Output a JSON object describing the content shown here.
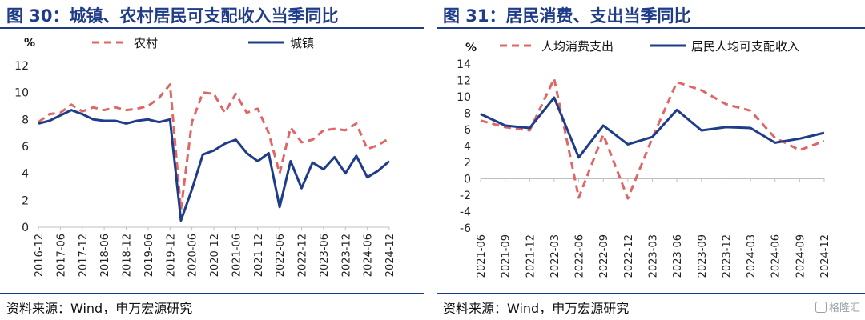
{
  "figures": [
    {
      "title": "图 30：城镇、农村居民可支配收入当季同比",
      "source": "资料来源：Wind，申万宏源研究"
    },
    {
      "title": "图 31：居民消费、支出当季同比",
      "source": "资料来源：Wind，申万宏源研究"
    }
  ],
  "watermark": "格隆汇",
  "chart_data": [
    {
      "type": "line",
      "ylabel": "%",
      "ylim": [
        0,
        12
      ],
      "yticks": [
        0,
        2,
        4,
        6,
        8,
        10,
        12
      ],
      "x": [
        "2016-12",
        "2017-03",
        "2017-06",
        "2017-09",
        "2017-12",
        "2018-03",
        "2018-06",
        "2018-09",
        "2018-12",
        "2019-03",
        "2019-06",
        "2019-09",
        "2019-12",
        "2020-03",
        "2020-06",
        "2020-09",
        "2020-12",
        "2021-03",
        "2021-06",
        "2021-09",
        "2021-12",
        "2022-03",
        "2022-06",
        "2022-09",
        "2022-12",
        "2023-03",
        "2023-06",
        "2023-09",
        "2023-12",
        "2024-03",
        "2024-06",
        "2024-09",
        "2024-12"
      ],
      "xtick_labels": [
        "2016-12",
        "2017-06",
        "2017-12",
        "2018-06",
        "2018-12",
        "2019-06",
        "2019-12",
        "2020-06",
        "2020-12",
        "2021-06",
        "2021-12",
        "2022-06",
        "2022-12",
        "2023-06",
        "2023-12",
        "2024-06",
        "2024-12"
      ],
      "legend_position": "top",
      "series": [
        {
          "name": "农村",
          "style": "dashed",
          "color": "#e06666",
          "values": [
            7.8,
            8.4,
            8.5,
            9.1,
            8.6,
            8.9,
            8.7,
            8.9,
            8.7,
            8.8,
            9.0,
            9.6,
            10.6,
            1.3,
            7.8,
            10.0,
            9.9,
            8.5,
            9.9,
            8.5,
            8.8,
            7.0,
            4.0,
            7.4,
            6.3,
            6.5,
            7.2,
            7.3,
            7.2,
            7.7,
            5.8,
            6.1,
            6.6
          ]
        },
        {
          "name": "城镇",
          "style": "solid",
          "color": "#1f3c88",
          "values": [
            7.7,
            7.9,
            8.3,
            8.7,
            8.4,
            8.0,
            7.9,
            7.9,
            7.7,
            7.9,
            8.0,
            7.8,
            8.0,
            0.5,
            2.8,
            5.4,
            5.7,
            6.2,
            6.5,
            5.5,
            4.9,
            5.5,
            1.5,
            4.9,
            2.9,
            4.8,
            4.3,
            5.2,
            4.0,
            5.3,
            3.7,
            4.2,
            4.9
          ]
        }
      ]
    },
    {
      "type": "line",
      "ylabel": "%",
      "ylim": [
        -6,
        14
      ],
      "yticks": [
        -6,
        -4,
        -2,
        0,
        2,
        4,
        6,
        8,
        10,
        12,
        14
      ],
      "x": [
        "2021-06",
        "2021-09",
        "2021-12",
        "2022-03",
        "2022-06",
        "2022-09",
        "2022-12",
        "2023-03",
        "2023-06",
        "2023-09",
        "2023-12",
        "2024-03",
        "2024-06",
        "2024-09",
        "2024-12"
      ],
      "xtick_labels": [
        "2021-06",
        "2021-09",
        "2021-12",
        "2022-03",
        "2022-06",
        "2022-09",
        "2022-12",
        "2023-03",
        "2023-06",
        "2023-09",
        "2023-12",
        "2024-03",
        "2024-06",
        "2024-09",
        "2024-12"
      ],
      "legend_position": "top",
      "series": [
        {
          "name": "人均消费支出",
          "style": "dashed",
          "color": "#e06666",
          "values": [
            7.1,
            6.3,
            5.9,
            12.2,
            -2.3,
            5.4,
            -2.4,
            5.0,
            11.8,
            10.8,
            9.1,
            8.3,
            5.0,
            3.5,
            4.6
          ]
        },
        {
          "name": "居民人均可支配收入",
          "style": "solid",
          "color": "#1f3c88",
          "values": [
            7.9,
            6.5,
            6.2,
            9.9,
            2.6,
            6.5,
            4.2,
            5.1,
            8.4,
            5.9,
            6.3,
            6.2,
            4.4,
            4.9,
            5.6
          ]
        }
      ]
    }
  ]
}
